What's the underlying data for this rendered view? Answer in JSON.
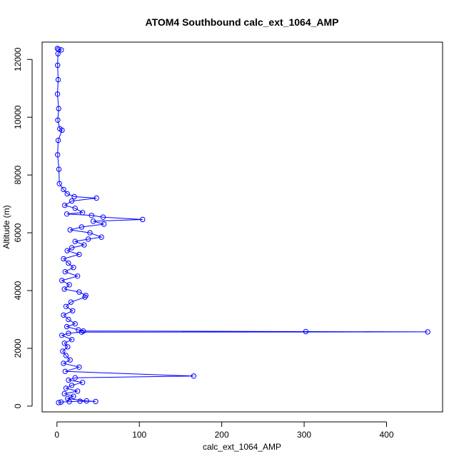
{
  "chart_data": {
    "type": "scatter",
    "title": "ATOM4 Southbound calc_ext_1064_AMP",
    "xlabel": "calc_ext_1064_AMP",
    "ylabel": "Altitude (m)",
    "xlim": [
      -18,
      468
    ],
    "ylim": [
      -200,
      12600
    ],
    "xticks": [
      0,
      100,
      200,
      300,
      400
    ],
    "yticks": [
      0,
      2000,
      4000,
      6000,
      8000,
      10000,
      12000
    ],
    "grid": false,
    "series_color": "#0000ff",
    "marker": "open-circle",
    "connected": true,
    "points": [
      [
        0.5,
        12380
      ],
      [
        2.0,
        12350
      ],
      [
        5.2,
        12330
      ],
      [
        1.2,
        12200
      ],
      [
        0.8,
        11800
      ],
      [
        1.5,
        11300
      ],
      [
        0.6,
        10800
      ],
      [
        2.1,
        10300
      ],
      [
        1.0,
        9900
      ],
      [
        3.5,
        9600
      ],
      [
        6.2,
        9550
      ],
      [
        1.5,
        9200
      ],
      [
        0.8,
        8700
      ],
      [
        2.4,
        8200
      ],
      [
        3.0,
        7700
      ],
      [
        8.0,
        7500
      ],
      [
        12.5,
        7350
      ],
      [
        21.0,
        7250
      ],
      [
        48.0,
        7200
      ],
      [
        18.0,
        7100
      ],
      [
        9.5,
        6950
      ],
      [
        22.0,
        6850
      ],
      [
        31.0,
        6700
      ],
      [
        12.0,
        6650
      ],
      [
        42.0,
        6600
      ],
      [
        56.0,
        6540
      ],
      [
        104.0,
        6460
      ],
      [
        44.0,
        6400
      ],
      [
        57.0,
        6300
      ],
      [
        30.0,
        6200
      ],
      [
        16.0,
        6100
      ],
      [
        40.0,
        6000
      ],
      [
        54.0,
        5850
      ],
      [
        38.0,
        5780
      ],
      [
        22.0,
        5700
      ],
      [
        33.0,
        5580
      ],
      [
        18.0,
        5480
      ],
      [
        12.5,
        5380
      ],
      [
        27.0,
        5250
      ],
      [
        8.0,
        5100
      ],
      [
        14.0,
        4950
      ],
      [
        20.0,
        4800
      ],
      [
        10.0,
        4650
      ],
      [
        25.0,
        4500
      ],
      [
        6.0,
        4350
      ],
      [
        15.0,
        4200
      ],
      [
        9.0,
        4050
      ],
      [
        27.0,
        3950
      ],
      [
        35.0,
        3830
      ],
      [
        34.0,
        3770
      ],
      [
        17.0,
        3600
      ],
      [
        11.0,
        3450
      ],
      [
        19.0,
        3300
      ],
      [
        8.0,
        3150
      ],
      [
        14.0,
        3000
      ],
      [
        22.0,
        2850
      ],
      [
        12.0,
        2750
      ],
      [
        26.0,
        2640
      ],
      [
        32.0,
        2600
      ],
      [
        302.0,
        2580
      ],
      [
        450.0,
        2570
      ],
      [
        30.0,
        2560
      ],
      [
        14.0,
        2520
      ],
      [
        6.0,
        2450
      ],
      [
        18.0,
        2300
      ],
      [
        9.0,
        2180
      ],
      [
        13.0,
        2050
      ],
      [
        7.0,
        1900
      ],
      [
        11.0,
        1750
      ],
      [
        16.0,
        1600
      ],
      [
        8.0,
        1480
      ],
      [
        27.0,
        1350
      ],
      [
        10.0,
        1200
      ],
      [
        166.0,
        1040
      ],
      [
        22.0,
        980
      ],
      [
        14.0,
        900
      ],
      [
        31.0,
        820
      ],
      [
        18.0,
        720
      ],
      [
        11.0,
        620
      ],
      [
        25.0,
        520
      ],
      [
        9.0,
        430
      ],
      [
        20.0,
        340
      ],
      [
        13.0,
        260
      ],
      [
        36.0,
        180
      ],
      [
        47.0,
        160
      ],
      [
        28.0,
        170
      ],
      [
        15.0,
        150
      ],
      [
        5.0,
        140
      ],
      [
        2.0,
        120
      ]
    ]
  }
}
